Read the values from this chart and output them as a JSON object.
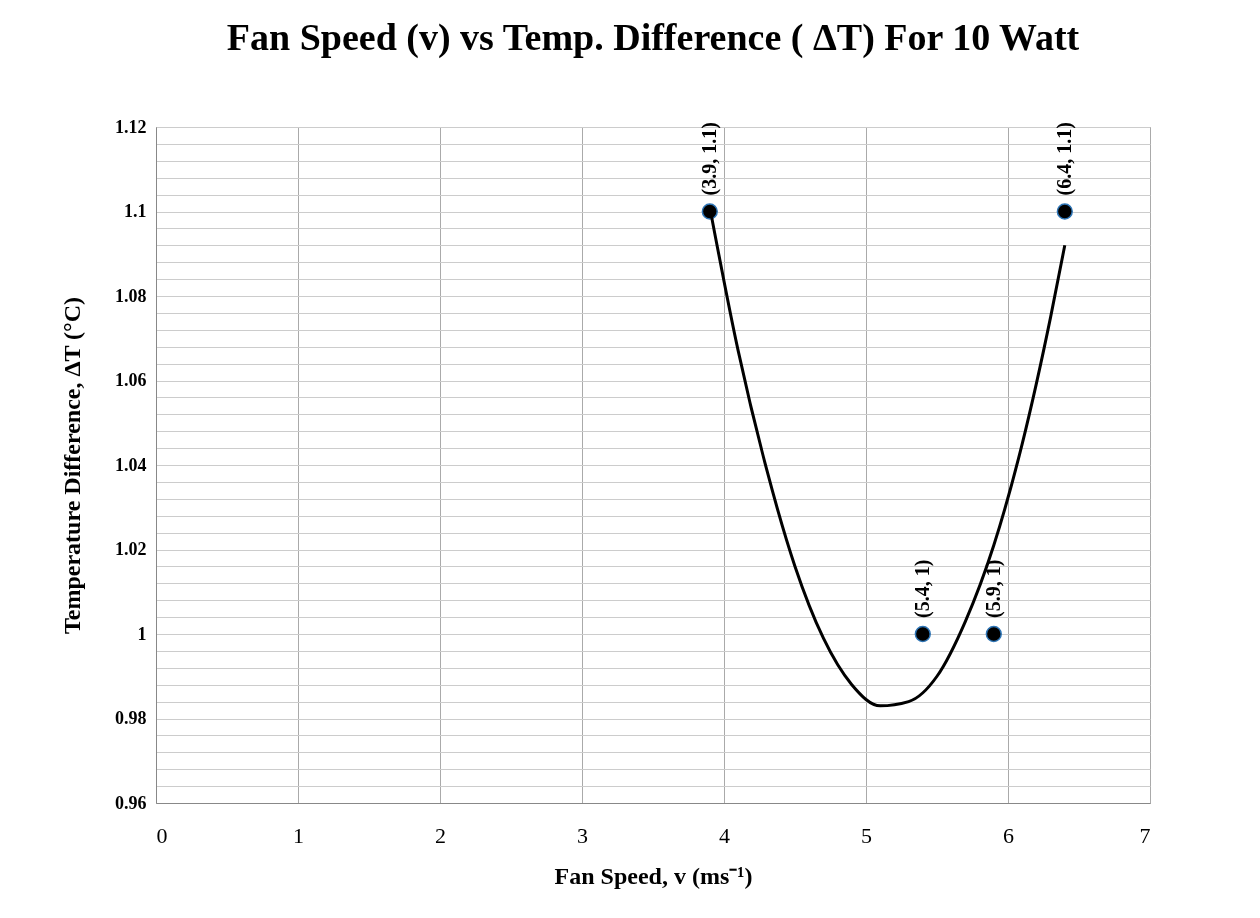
{
  "chart_data": {
    "type": "scatter",
    "title": "Fan Speed (v) vs Temp. Difference ( ΔT) For 10 Watt",
    "xlabel": "Fan Speed, v (ms⁻¹)",
    "ylabel": "Temperature Difference, ΔT (°C)",
    "xlim": [
      0,
      7
    ],
    "xticks": [
      0,
      1,
      2,
      3,
      4,
      5,
      6,
      7
    ],
    "ylim": [
      0.96,
      1.12
    ],
    "yticks": [
      0.96,
      {
        "value": 0.964,
        "label": null
      },
      {
        "value": 0.968,
        "label": null
      },
      {
        "value": 0.972,
        "label": null
      },
      {
        "value": 0.976,
        "label": null
      },
      0.98,
      {
        "value": 0.984,
        "label": null
      },
      {
        "value": 0.988,
        "label": null
      },
      {
        "value": 0.992,
        "label": null
      },
      {
        "value": 0.996,
        "label": null
      },
      1,
      {
        "value": 1.004,
        "label": null
      },
      {
        "value": 1.008,
        "label": null
      },
      {
        "value": 1.012,
        "label": null
      },
      {
        "value": 1.016,
        "label": null
      },
      1.02,
      {
        "value": 1.024,
        "label": null
      },
      {
        "value": 1.028,
        "label": null
      },
      {
        "value": 1.032,
        "label": null
      },
      {
        "value": 1.036,
        "label": null
      },
      1.04,
      {
        "value": 1.044,
        "label": null
      },
      {
        "value": 1.048,
        "label": null
      },
      {
        "value": 1.052,
        "label": null
      },
      {
        "value": 1.056,
        "label": null
      },
      1.06,
      {
        "value": 1.064,
        "label": null
      },
      {
        "value": 1.068,
        "label": null
      },
      {
        "value": 1.072,
        "label": null
      },
      {
        "value": 1.076,
        "label": null
      },
      1.08,
      {
        "value": 1.084,
        "label": null
      },
      {
        "value": 1.088,
        "label": null
      },
      {
        "value": 1.092,
        "label": null
      },
      {
        "value": 1.096,
        "label": null
      },
      1.1,
      {
        "value": 1.104,
        "label": null
      },
      {
        "value": 1.108,
        "label": null
      },
      {
        "value": 1.112,
        "label": null
      },
      {
        "value": 1.116,
        "label": null
      },
      1.12
    ],
    "grid": true,
    "marker": "circle",
    "series": [
      {
        "color": "#000000",
        "x": [
          3.9,
          5.4,
          5.9,
          6.4
        ],
        "values": [
          1.1,
          1,
          1,
          1.1
        ],
        "value_labels": [
          "(3.9, 1.1)",
          "(5.4, 1)",
          "(5.9, 1)",
          "(6.4, 1.1)"
        ]
      },
      {
        "type": "line",
        "marker": "none",
        "color": "#000000",
        "line_style": "solid",
        "x": [
          3.9,
          4.1,
          4.3,
          4.5,
          4.7,
          4.9,
          5.1,
          5.3,
          5.5,
          5.7,
          5.9,
          6.1,
          6.3,
          6.4
        ],
        "values": [
          1.101,
          1.067,
          1.039,
          1.016,
          0.999,
          0.988,
          0.983,
          0.984,
          0.99,
          1.003,
          1.021,
          1.045,
          1.075,
          1.092
        ]
      }
    ]
  }
}
